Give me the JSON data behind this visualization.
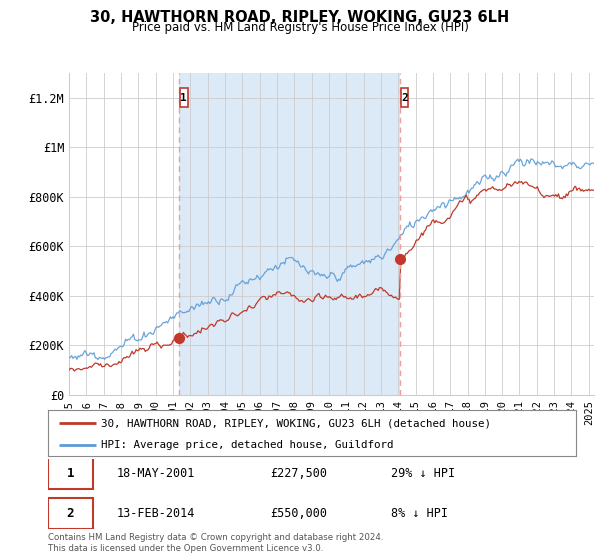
{
  "title": "30, HAWTHORN ROAD, RIPLEY, WOKING, GU23 6LH",
  "subtitle": "Price paid vs. HM Land Registry's House Price Index (HPI)",
  "xlim_start": 1995.0,
  "xlim_end": 2025.3,
  "ylim": [
    0,
    1300000
  ],
  "yticks": [
    0,
    200000,
    400000,
    600000,
    800000,
    1000000,
    1200000
  ],
  "ytick_labels": [
    "£0",
    "£200K",
    "£400K",
    "£600K",
    "£800K",
    "£1M",
    "£1.2M"
  ],
  "bg_color": "#ffffff",
  "shade_color": "#dce9f7",
  "grid_color": "#cccccc",
  "sale1_x": 2001.37,
  "sale1_y": 227500,
  "sale1_label": "1",
  "sale2_x": 2014.12,
  "sale2_y": 550000,
  "sale2_label": "2",
  "vline1_x": 2001.37,
  "vline2_x": 2014.12,
  "legend_line1": "30, HAWTHORN ROAD, RIPLEY, WOKING, GU23 6LH (detached house)",
  "legend_line2": "HPI: Average price, detached house, Guildford",
  "table_rows": [
    [
      "1",
      "18-MAY-2001",
      "£227,500",
      "29% ↓ HPI"
    ],
    [
      "2",
      "13-FEB-2014",
      "£550,000",
      "8% ↓ HPI"
    ]
  ],
  "footnote": "Contains HM Land Registry data © Crown copyright and database right 2024.\nThis data is licensed under the Open Government Licence v3.0.",
  "hpi_color": "#5b9bd5",
  "price_color": "#c0392b",
  "vline_color": "#e8a0a0"
}
